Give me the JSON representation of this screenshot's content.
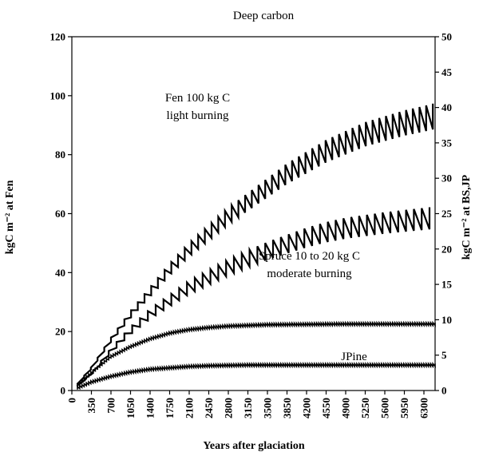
{
  "chart_data": {
    "type": "line",
    "title": "Deep carbon",
    "xlabel": "Years after glaciation",
    "ylabel_left": "kgC m⁻² at Fen",
    "ylabel_right": "kgC m⁻² at BS,JP",
    "x_tick_labels": [
      "0",
      "350",
      "700",
      "1050",
      "1400",
      "1750",
      "2100",
      "2450",
      "2800",
      "3150",
      "3500",
      "3850",
      "4200",
      "4550",
      "4900",
      "5250",
      "5600",
      "5950",
      "6300"
    ],
    "y_left_tick_labels": [
      "0",
      "20",
      "40",
      "60",
      "80",
      "100",
      "120"
    ],
    "y_right_tick_labels": [
      "0",
      "5",
      "10",
      "15",
      "20",
      "25",
      "30",
      "35",
      "40",
      "45",
      "50"
    ],
    "xlim": [
      0,
      6500
    ],
    "ylim_left": [
      0,
      120
    ],
    "ylim_right": [
      0,
      50
    ],
    "grid": false,
    "legend": "none",
    "line_color": "#000000",
    "series": [
      {
        "axis": "left",
        "x": [
          0,
          350,
          700,
          1050,
          1400,
          1750,
          2100,
          2450,
          2800,
          3150,
          3500,
          3850,
          4200,
          4550,
          4900,
          5250,
          5600,
          5950,
          6300,
          6500
        ],
        "values": [
          0,
          8,
          18,
          27,
          35,
          43,
          50,
          56,
          62,
          67,
          72,
          77,
          81,
          85,
          88,
          91,
          93,
          95,
          96.5,
          97.5
        ]
      },
      {
        "axis": "right",
        "x": [
          0,
          350,
          700,
          1050,
          1400,
          1750,
          2100,
          2450,
          2800,
          3150,
          3500,
          3850,
          4200,
          4550,
          4900,
          5250,
          5600,
          5950,
          6300,
          6500
        ],
        "values": [
          0,
          2.5,
          6,
          9,
          11.5,
          13.5,
          15.5,
          17,
          18.5,
          19.8,
          21,
          22,
          23,
          23.8,
          24.4,
          24.8,
          25.2,
          25.5,
          25.8,
          26
        ]
      },
      {
        "axis": "right",
        "x": [
          0,
          350,
          700,
          1050,
          1400,
          1750,
          2100,
          2450,
          2800,
          3150,
          3500,
          4200,
          4900,
          5600,
          6300,
          6500
        ],
        "values": [
          0,
          2.5,
          4.8,
          6.2,
          7.3,
          8.1,
          8.6,
          8.9,
          9.1,
          9.2,
          9.3,
          9.35,
          9.4,
          9.4,
          9.4,
          9.4
        ]
      },
      {
        "axis": "right",
        "x": [
          0,
          350,
          700,
          1050,
          1400,
          1750,
          2100,
          2450,
          2800,
          3150,
          3500,
          4200,
          4900,
          5600,
          6300,
          6500
        ],
        "values": [
          0,
          1.2,
          2,
          2.6,
          3,
          3.2,
          3.4,
          3.5,
          3.55,
          3.6,
          3.6,
          3.6,
          3.6,
          3.6,
          3.6,
          3.6
        ]
      }
    ],
    "annotations": [
      {
        "lines": [
          "Fen 100 kg C",
          "light burning"
        ],
        "x": 2250,
        "y": 98,
        "axis": "left"
      },
      {
        "lines": [
          "Spruce 10 to 20 kg C",
          "moderate burning"
        ],
        "x": 4250,
        "y": 18.5,
        "axis": "right"
      },
      {
        "lines": [
          "JPine"
        ],
        "x": 5050,
        "y": 4.3,
        "axis": "right"
      }
    ]
  }
}
